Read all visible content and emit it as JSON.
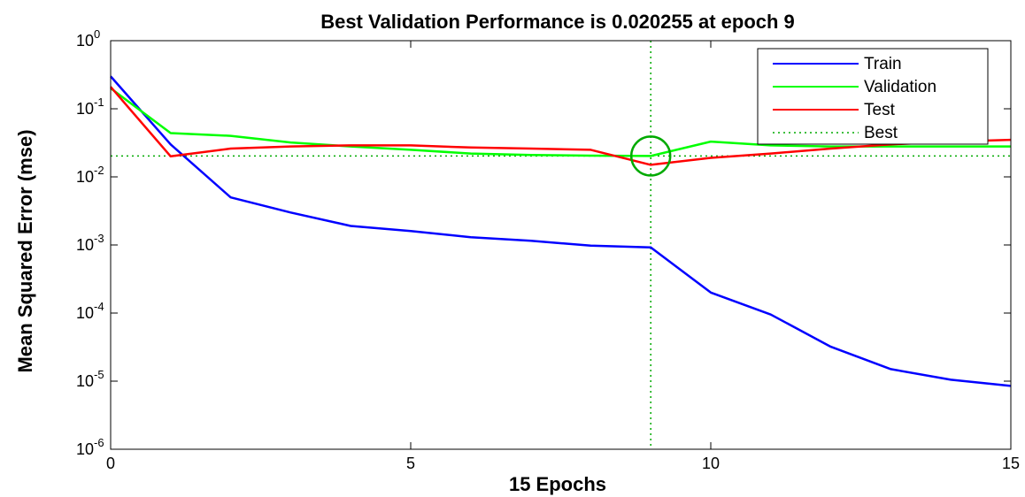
{
  "chart_data": {
    "type": "line",
    "title": "Best Validation Performance is 0.020255 at epoch 9",
    "xlabel": "15 Epochs",
    "ylabel": "Mean Squared Error  (mse)",
    "xlim": [
      0,
      15
    ],
    "ylim": [
      1e-06,
      1
    ],
    "yscale": "log",
    "x_ticks": [
      0,
      5,
      10,
      15
    ],
    "y_ticks": [
      {
        "value": 1,
        "base": "10",
        "exp": "0"
      },
      {
        "value": 0.1,
        "base": "10",
        "exp": "-1"
      },
      {
        "value": 0.01,
        "base": "10",
        "exp": "-2"
      },
      {
        "value": 0.001,
        "base": "10",
        "exp": "-3"
      },
      {
        "value": 0.0001,
        "base": "10",
        "exp": "-4"
      },
      {
        "value": 1e-05,
        "base": "10",
        "exp": "-5"
      },
      {
        "value": 1e-06,
        "base": "10",
        "exp": "-6"
      }
    ],
    "x": [
      0,
      1,
      2,
      3,
      4,
      5,
      6,
      7,
      8,
      9,
      10,
      11,
      12,
      13,
      14,
      15
    ],
    "series": [
      {
        "name": "Train",
        "color": "#0000ff",
        "values": [
          0.3,
          0.03,
          0.005,
          0.003,
          0.0019,
          0.0016,
          0.0013,
          0.00115,
          0.00098,
          0.00092,
          0.0002,
          9.5e-05,
          3.2e-05,
          1.5e-05,
          1.05e-05,
          8.5e-06
        ]
      },
      {
        "name": "Validation",
        "color": "#00ff00",
        "values": [
          0.2,
          0.044,
          0.04,
          0.032,
          0.028,
          0.025,
          0.022,
          0.021,
          0.0205,
          0.020255,
          0.033,
          0.029,
          0.028,
          0.028,
          0.028,
          0.028
        ]
      },
      {
        "name": "Test",
        "color": "#ff0000",
        "values": [
          0.21,
          0.02,
          0.026,
          0.028,
          0.029,
          0.029,
          0.027,
          0.026,
          0.025,
          0.015,
          0.019,
          0.022,
          0.026,
          0.03,
          0.033,
          0.035
        ]
      }
    ],
    "best": {
      "label": "Best",
      "epoch": 9,
      "value": 0.020255,
      "color": "#00aa00"
    },
    "grid": false,
    "legend_position": "top-right"
  }
}
